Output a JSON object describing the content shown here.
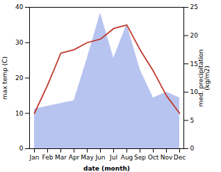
{
  "chart_data": {
    "type": "line",
    "categories": [
      "Jan",
      "Feb",
      "Mar",
      "Apr",
      "May",
      "Jun",
      "Jul",
      "Aug",
      "Sep",
      "Oct",
      "Nov",
      "Dec"
    ],
    "xlabel": "date (month)",
    "ylabel": "max temp (C)",
    "y2label": "med. precipitation\n(kg/m2)",
    "ylim": [
      0,
      40
    ],
    "yticks": [
      0,
      10,
      20,
      30,
      40
    ],
    "y2lim": [
      0,
      25
    ],
    "y2ticks": [
      0,
      5,
      10,
      15,
      20,
      25
    ],
    "series": [
      {
        "type": "area",
        "axis": "y2",
        "color": "#b8c4f0",
        "values": [
          7,
          7.5,
          8,
          8.5,
          16,
          24,
          16,
          22,
          14,
          9,
          10,
          9
        ]
      },
      {
        "type": "line",
        "color": "#c0392b",
        "values": [
          10,
          18,
          27,
          28,
          30,
          31,
          34,
          35,
          28,
          22,
          15,
          10
        ]
      }
    ]
  }
}
